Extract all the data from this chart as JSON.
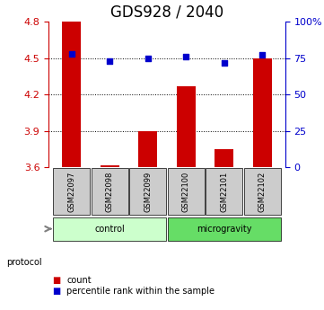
{
  "title": "GDS928 / 2040",
  "samples": [
    "GSM22097",
    "GSM22098",
    "GSM22099",
    "GSM22100",
    "GSM22101",
    "GSM22102"
  ],
  "count_values": [
    4.8,
    3.62,
    3.9,
    4.27,
    3.75,
    4.5
  ],
  "percentile_values": [
    78,
    73,
    75,
    76,
    72,
    77
  ],
  "ylim_left": [
    3.6,
    4.8
  ],
  "ylim_right": [
    0,
    100
  ],
  "yticks_left": [
    3.6,
    3.9,
    4.2,
    4.5,
    4.8
  ],
  "yticks_right": [
    0,
    25,
    50,
    75,
    100
  ],
  "ytick_labels_left": [
    "3.6",
    "3.9",
    "4.2",
    "4.5",
    "4.8"
  ],
  "ytick_labels_right": [
    "0",
    "25",
    "50",
    "75",
    "100%"
  ],
  "bar_color": "#cc0000",
  "dot_color": "#0000cc",
  "bar_bottom": 3.6,
  "groups": [
    {
      "label": "control",
      "indices": [
        0,
        1,
        2
      ],
      "color": "#ccffcc"
    },
    {
      "label": "microgravity",
      "indices": [
        3,
        4,
        5
      ],
      "color": "#66dd66"
    }
  ],
  "protocol_label": "protocol",
  "legend_count": "count",
  "legend_percentile": "percentile rank within the sample",
  "bar_width": 0.5,
  "sample_box_color": "#cccccc",
  "title_fontsize": 12
}
